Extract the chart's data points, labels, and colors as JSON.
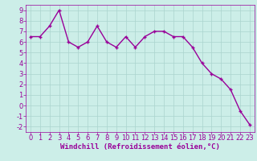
{
  "x": [
    0,
    1,
    2,
    3,
    4,
    5,
    6,
    7,
    8,
    9,
    10,
    11,
    12,
    13,
    14,
    15,
    16,
    17,
    18,
    19,
    20,
    21,
    22,
    23
  ],
  "y": [
    6.5,
    6.5,
    7.5,
    9.0,
    6.0,
    5.5,
    6.0,
    7.5,
    6.0,
    5.5,
    6.5,
    5.5,
    6.5,
    7.0,
    7.0,
    6.5,
    6.5,
    5.5,
    4.0,
    3.0,
    2.5,
    1.5,
    -0.5,
    -1.8
  ],
  "line_color": "#990099",
  "marker": "+",
  "bg_color": "#cceee8",
  "grid_color": "#aad4ce",
  "xlabel": "Windchill (Refroidissement éolien,°C)",
  "xlim": [
    -0.5,
    23.5
  ],
  "ylim": [
    -2.5,
    9.5
  ],
  "xticks": [
    0,
    1,
    2,
    3,
    4,
    5,
    6,
    7,
    8,
    9,
    10,
    11,
    12,
    13,
    14,
    15,
    16,
    17,
    18,
    19,
    20,
    21,
    22,
    23
  ],
  "yticks": [
    -2,
    -1,
    0,
    1,
    2,
    3,
    4,
    5,
    6,
    7,
    8,
    9
  ],
  "tick_color": "#990099",
  "label_color": "#990099",
  "xlabel_fontsize": 6.5,
  "tick_fontsize": 6.0,
  "linewidth": 1.0,
  "markersize": 3.5
}
